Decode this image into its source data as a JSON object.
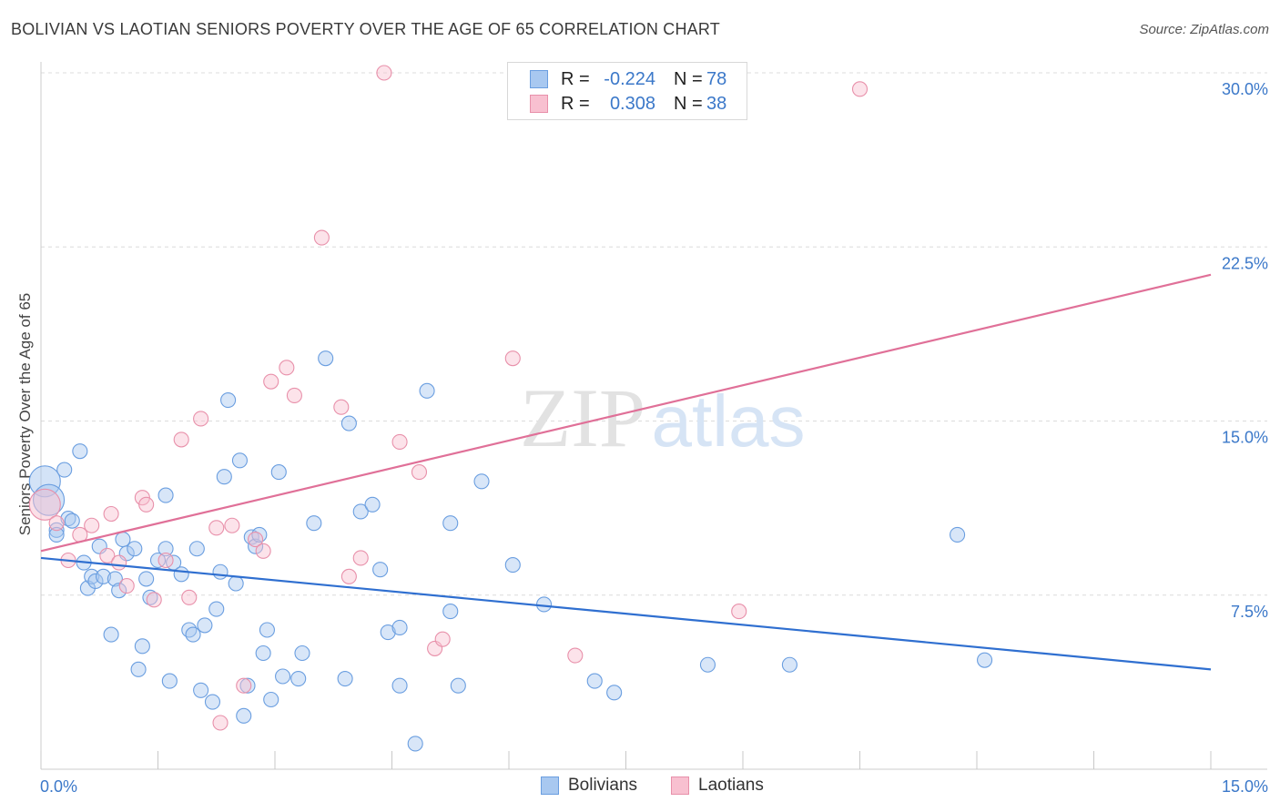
{
  "title": "BOLIVIAN VS LAOTIAN SENIORS POVERTY OVER THE AGE OF 65 CORRELATION CHART",
  "source": "Source: ZipAtlas.com",
  "watermark": {
    "zip": "ZIP",
    "atlas": "atlas"
  },
  "legend": {
    "rows": [
      {
        "r_label": "R =",
        "r_value": "-0.224",
        "n_label": "N =",
        "n_value": "78",
        "color": "#a8c8f0",
        "border": "#6a9ee0"
      },
      {
        "r_label": "R =",
        "r_value": "0.308",
        "n_label": "N =",
        "n_value": "38",
        "color": "#f8c0d0",
        "border": "#e890aa"
      }
    ]
  },
  "bottom_legend": [
    {
      "label": "Bolivians",
      "color": "#a8c8f0",
      "border": "#6a9ee0"
    },
    {
      "label": "Laotians",
      "color": "#f8c0d0",
      "border": "#e890aa"
    }
  ],
  "chart_data": {
    "type": "scatter",
    "title": "BOLIVIAN VS LAOTIAN SENIORS POVERTY OVER THE AGE OF 65 CORRELATION CHART",
    "xlabel": "",
    "ylabel": "Seniors Poverty Over the Age of 65",
    "xlim": [
      0,
      15
    ],
    "ylim": [
      0,
      30
    ],
    "x_tick_labels": [
      "0.0%",
      "15.0%"
    ],
    "y_ticks": [
      7.5,
      15,
      22.5,
      30
    ],
    "y_tick_labels": [
      "7.5%",
      "15.0%",
      "22.5%",
      "30.0%"
    ],
    "grid": true,
    "legend_position": "top-center",
    "series": [
      {
        "name": "Bolivians",
        "color": "#a8c8f0",
        "stroke": "#6a9ee0",
        "line_color": "#2f6fd0",
        "trend": [
          [
            0,
            9.1
          ],
          [
            15,
            4.3
          ]
        ],
        "points": [
          [
            0.05,
            12.4
          ],
          [
            0.1,
            11.6
          ],
          [
            0.2,
            10.3
          ],
          [
            0.3,
            12.9
          ],
          [
            0.35,
            10.8
          ],
          [
            0.4,
            10.7
          ],
          [
            0.2,
            10.1
          ],
          [
            0.5,
            13.7
          ],
          [
            0.55,
            8.9
          ],
          [
            0.6,
            7.8
          ],
          [
            0.65,
            8.3
          ],
          [
            0.7,
            8.1
          ],
          [
            0.75,
            9.6
          ],
          [
            0.8,
            8.3
          ],
          [
            0.9,
            5.8
          ],
          [
            0.95,
            8.2
          ],
          [
            1.0,
            7.7
          ],
          [
            1.05,
            9.9
          ],
          [
            1.1,
            9.3
          ],
          [
            1.2,
            9.5
          ],
          [
            1.25,
            4.3
          ],
          [
            1.3,
            5.3
          ],
          [
            1.35,
            8.2
          ],
          [
            1.4,
            7.4
          ],
          [
            1.5,
            9.0
          ],
          [
            1.6,
            9.5
          ],
          [
            1.6,
            11.8
          ],
          [
            1.65,
            3.8
          ],
          [
            1.7,
            8.9
          ],
          [
            1.8,
            8.4
          ],
          [
            1.9,
            6.0
          ],
          [
            1.95,
            5.8
          ],
          [
            2.0,
            9.5
          ],
          [
            2.05,
            3.4
          ],
          [
            2.1,
            6.2
          ],
          [
            2.2,
            2.9
          ],
          [
            2.25,
            6.9
          ],
          [
            2.3,
            8.5
          ],
          [
            2.35,
            12.6
          ],
          [
            2.4,
            15.9
          ],
          [
            2.5,
            8.0
          ],
          [
            2.55,
            13.3
          ],
          [
            2.6,
            2.3
          ],
          [
            2.65,
            3.6
          ],
          [
            2.7,
            10.0
          ],
          [
            2.75,
            9.6
          ],
          [
            2.8,
            10.1
          ],
          [
            2.85,
            5.0
          ],
          [
            2.9,
            6.0
          ],
          [
            2.95,
            3.0
          ],
          [
            3.05,
            12.8
          ],
          [
            3.1,
            4.0
          ],
          [
            3.3,
            3.9
          ],
          [
            3.35,
            5.0
          ],
          [
            3.5,
            10.6
          ],
          [
            3.65,
            17.7
          ],
          [
            3.9,
            3.9
          ],
          [
            3.95,
            14.9
          ],
          [
            4.1,
            11.1
          ],
          [
            4.25,
            11.4
          ],
          [
            4.35,
            8.6
          ],
          [
            4.45,
            5.9
          ],
          [
            4.6,
            6.1
          ],
          [
            4.6,
            3.6
          ],
          [
            4.8,
            1.1
          ],
          [
            4.95,
            16.3
          ],
          [
            5.25,
            6.8
          ],
          [
            5.25,
            10.6
          ],
          [
            5.35,
            3.6
          ],
          [
            5.65,
            12.4
          ],
          [
            6.05,
            8.8
          ],
          [
            6.45,
            7.1
          ],
          [
            7.1,
            3.8
          ],
          [
            7.35,
            3.3
          ],
          [
            8.55,
            4.5
          ],
          [
            9.6,
            4.5
          ],
          [
            11.75,
            10.1
          ],
          [
            12.1,
            4.7
          ]
        ]
      },
      {
        "name": "Laotians",
        "color": "#f8c0d0",
        "stroke": "#e890aa",
        "line_color": "#e07098",
        "trend": [
          [
            0,
            9.4
          ],
          [
            15,
            21.3
          ]
        ],
        "points": [
          [
            0.05,
            11.4
          ],
          [
            0.2,
            10.6
          ],
          [
            0.35,
            9.0
          ],
          [
            0.5,
            10.1
          ],
          [
            0.65,
            10.5
          ],
          [
            0.85,
            9.2
          ],
          [
            0.9,
            11.0
          ],
          [
            1.0,
            8.9
          ],
          [
            1.1,
            7.9
          ],
          [
            1.3,
            11.7
          ],
          [
            1.35,
            11.4
          ],
          [
            1.45,
            7.3
          ],
          [
            1.6,
            9.0
          ],
          [
            1.8,
            14.2
          ],
          [
            1.9,
            7.4
          ],
          [
            2.05,
            15.1
          ],
          [
            2.25,
            10.4
          ],
          [
            2.3,
            2.0
          ],
          [
            2.45,
            10.5
          ],
          [
            2.6,
            3.6
          ],
          [
            2.75,
            9.9
          ],
          [
            2.85,
            9.4
          ],
          [
            2.95,
            16.7
          ],
          [
            3.15,
            17.3
          ],
          [
            3.25,
            16.1
          ],
          [
            3.6,
            22.9
          ],
          [
            3.85,
            15.6
          ],
          [
            3.95,
            8.3
          ],
          [
            4.1,
            9.1
          ],
          [
            4.4,
            30.0
          ],
          [
            4.6,
            14.1
          ],
          [
            4.85,
            12.8
          ],
          [
            5.05,
            5.2
          ],
          [
            5.15,
            5.6
          ],
          [
            6.05,
            17.7
          ],
          [
            6.85,
            4.9
          ],
          [
            8.95,
            6.8
          ],
          [
            10.5,
            29.3
          ]
        ]
      }
    ]
  }
}
